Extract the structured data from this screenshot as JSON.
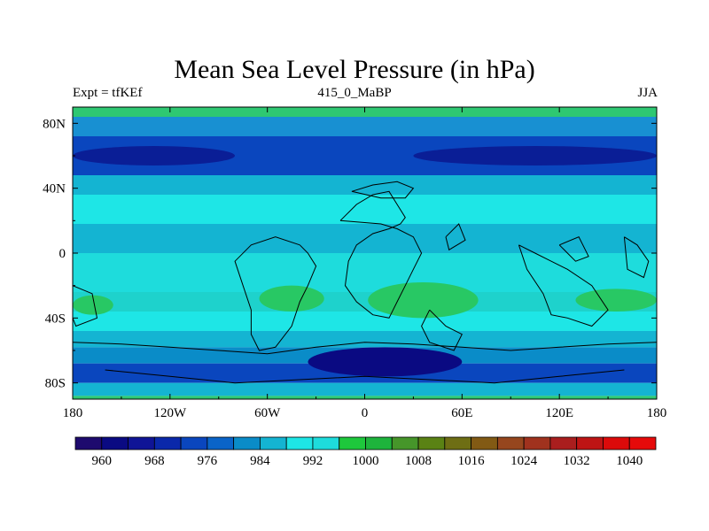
{
  "chart_data": {
    "type": "heatmap",
    "title": "Mean Sea Level Pressure (in hPa)",
    "subtitle_left": "Expt = tfKEf",
    "subtitle_center": "415_0_MaBP",
    "subtitle_right": "JJA",
    "x_ticks": [
      "180",
      "120W",
      "60W",
      "0",
      "60E",
      "120E",
      "180"
    ],
    "x_tick_values": [
      -180,
      -120,
      -60,
      0,
      60,
      120,
      180
    ],
    "y_ticks": [
      "80N",
      "40N",
      "0",
      "40S",
      "80S"
    ],
    "y_tick_values": [
      80,
      40,
      0,
      -40,
      -80
    ],
    "xlim": [
      -180,
      180
    ],
    "ylim": [
      -90,
      90
    ],
    "colorbar_labels": [
      "960",
      "968",
      "976",
      "984",
      "992",
      "1000",
      "1008",
      "1016",
      "1024",
      "1032",
      "1040"
    ],
    "colorbar_colors": [
      "#1e0a6e",
      "#0a0a82",
      "#0f1496",
      "#0a28aa",
      "#0a46be",
      "#0a64c8",
      "#0a8cc8",
      "#14b4d2",
      "#1ee6e6",
      "#1edcdc",
      "#1ec83c",
      "#1eb43c",
      "#46962a",
      "#5a8214",
      "#6e6e14",
      "#825a14",
      "#96461e",
      "#a0321e",
      "#aa1e1e",
      "#be1414",
      "#dc0a0a",
      "#e60a0a"
    ],
    "bands": [
      {
        "lat": [
          84,
          90
        ],
        "value": 1004,
        "color": "#2ec872"
      },
      {
        "lat": [
          72,
          84
        ],
        "value": 990,
        "color": "#1890d2"
      },
      {
        "lat": [
          48,
          72
        ],
        "value": 980,
        "color": "#0a46be"
      },
      {
        "lat": [
          36,
          48
        ],
        "value": 988,
        "color": "#14b4d2"
      },
      {
        "lat": [
          18,
          36
        ],
        "value": 995,
        "color": "#1ee6e6"
      },
      {
        "lat": [
          0,
          18
        ],
        "value": 990,
        "color": "#14b4d2"
      },
      {
        "lat": [
          -24,
          0
        ],
        "value": 996,
        "color": "#1edcdc"
      },
      {
        "lat": [
          -36,
          -24
        ],
        "value": 1002,
        "color": "#1ed2cc"
      },
      {
        "lat": [
          -48,
          -36
        ],
        "value": 995,
        "color": "#1ee6e6"
      },
      {
        "lat": [
          -58,
          -48
        ],
        "value": 990,
        "color": "#14b4d2"
      },
      {
        "lat": [
          -68,
          -58
        ],
        "value": 984,
        "color": "#0a8cc8"
      },
      {
        "lat": [
          -80,
          -68
        ],
        "value": 976,
        "color": "#0a46be"
      },
      {
        "lat": [
          -88,
          -80
        ],
        "value": 990,
        "color": "#14b4d2"
      },
      {
        "lat": [
          -90,
          -88
        ],
        "value": 1004,
        "color": "#2ec872"
      }
    ],
    "low_cells": [
      {
        "lon": [
          -180,
          -80
        ],
        "lat": [
          54,
          66
        ],
        "value": 968,
        "color": "#0a1e96"
      },
      {
        "lon": [
          30,
          180
        ],
        "lat": [
          54,
          66
        ],
        "value": 968,
        "color": "#0a1e96"
      },
      {
        "lon": [
          -35,
          60
        ],
        "lat": [
          -76,
          -58
        ],
        "value": 966,
        "color": "#0a0a82"
      }
    ],
    "high_cells": [
      {
        "lon": [
          -180,
          -155
        ],
        "lat": [
          -38,
          -26
        ],
        "value": 1004,
        "color": "#28c864"
      },
      {
        "lon": [
          -65,
          -25
        ],
        "lat": [
          -36,
          -20
        ],
        "value": 1004,
        "color": "#28c864"
      },
      {
        "lon": [
          2,
          70
        ],
        "lat": [
          -40,
          -18
        ],
        "value": 1004,
        "color": "#28c864"
      },
      {
        "lon": [
          130,
          180
        ],
        "lat": [
          -36,
          -22
        ],
        "value": 1004,
        "color": "#28c864"
      }
    ],
    "coastlines": [
      [
        [
          -15,
          20
        ],
        [
          -5,
          30
        ],
        [
          5,
          36
        ],
        [
          15,
          38
        ],
        [
          20,
          30
        ],
        [
          25,
          22
        ],
        [
          22,
          18
        ],
        [
          15,
          15
        ],
        [
          5,
          12
        ],
        [
          -5,
          5
        ],
        [
          -10,
          -5
        ],
        [
          -12,
          -20
        ],
        [
          -5,
          -30
        ],
        [
          5,
          -38
        ],
        [
          15,
          -40
        ],
        [
          20,
          -30
        ],
        [
          25,
          -20
        ],
        [
          30,
          -10
        ],
        [
          35,
          0
        ],
        [
          30,
          10
        ],
        [
          20,
          15
        ],
        [
          10,
          18
        ],
        [
          -15,
          20
        ]
      ],
      [
        [
          -8,
          38
        ],
        [
          5,
          42
        ],
        [
          20,
          44
        ],
        [
          30,
          40
        ],
        [
          25,
          34
        ],
        [
          10,
          34
        ],
        [
          -8,
          38
        ]
      ],
      [
        [
          -40,
          5
        ],
        [
          -35,
          0
        ],
        [
          -30,
          -8
        ],
        [
          -35,
          -20
        ],
        [
          -40,
          -30
        ],
        [
          -45,
          -45
        ],
        [
          -55,
          -58
        ],
        [
          -65,
          -60
        ],
        [
          -70,
          -50
        ],
        [
          -70,
          -35
        ],
        [
          -75,
          -20
        ],
        [
          -80,
          -5
        ],
        [
          -70,
          5
        ],
        [
          -55,
          10
        ],
        [
          -40,
          5
        ]
      ],
      [
        [
          95,
          5
        ],
        [
          105,
          0
        ],
        [
          115,
          -5
        ],
        [
          125,
          -10
        ],
        [
          140,
          -20
        ],
        [
          150,
          -35
        ],
        [
          140,
          -45
        ],
        [
          125,
          -40
        ],
        [
          115,
          -38
        ],
        [
          110,
          -25
        ],
        [
          100,
          -10
        ],
        [
          95,
          5
        ]
      ],
      [
        [
          120,
          5
        ],
        [
          125,
          0
        ],
        [
          130,
          -5
        ],
        [
          138,
          -2
        ],
        [
          132,
          10
        ],
        [
          120,
          5
        ]
      ],
      [
        [
          -180,
          -20
        ],
        [
          -168,
          -25
        ],
        [
          -165,
          -40
        ],
        [
          -178,
          -45
        ],
        [
          -180,
          -40
        ]
      ],
      [
        [
          -180,
          -55
        ],
        [
          -150,
          -56
        ],
        [
          -120,
          -58
        ],
        [
          -90,
          -60
        ],
        [
          -60,
          -62
        ],
        [
          -30,
          -58
        ],
        [
          0,
          -55
        ],
        [
          30,
          -56
        ],
        [
          60,
          -58
        ],
        [
          90,
          -60
        ],
        [
          120,
          -58
        ],
        [
          150,
          -56
        ],
        [
          180,
          -55
        ]
      ],
      [
        [
          -160,
          -72
        ],
        [
          -120,
          -76
        ],
        [
          -80,
          -80
        ],
        [
          -40,
          -78
        ],
        [
          0,
          -76
        ],
        [
          40,
          -78
        ],
        [
          80,
          -80
        ],
        [
          120,
          -76
        ],
        [
          160,
          -72
        ]
      ],
      [
        [
          40,
          -35
        ],
        [
          50,
          -45
        ],
        [
          60,
          -50
        ],
        [
          55,
          -60
        ],
        [
          40,
          -55
        ],
        [
          35,
          -45
        ],
        [
          40,
          -35
        ]
      ],
      [
        [
          160,
          10
        ],
        [
          168,
          5
        ],
        [
          175,
          -5
        ],
        [
          172,
          -15
        ],
        [
          162,
          -10
        ],
        [
          160,
          10
        ]
      ],
      [
        [
          50,
          10
        ],
        [
          58,
          18
        ],
        [
          62,
          8
        ],
        [
          52,
          2
        ],
        [
          50,
          10
        ]
      ]
    ]
  }
}
